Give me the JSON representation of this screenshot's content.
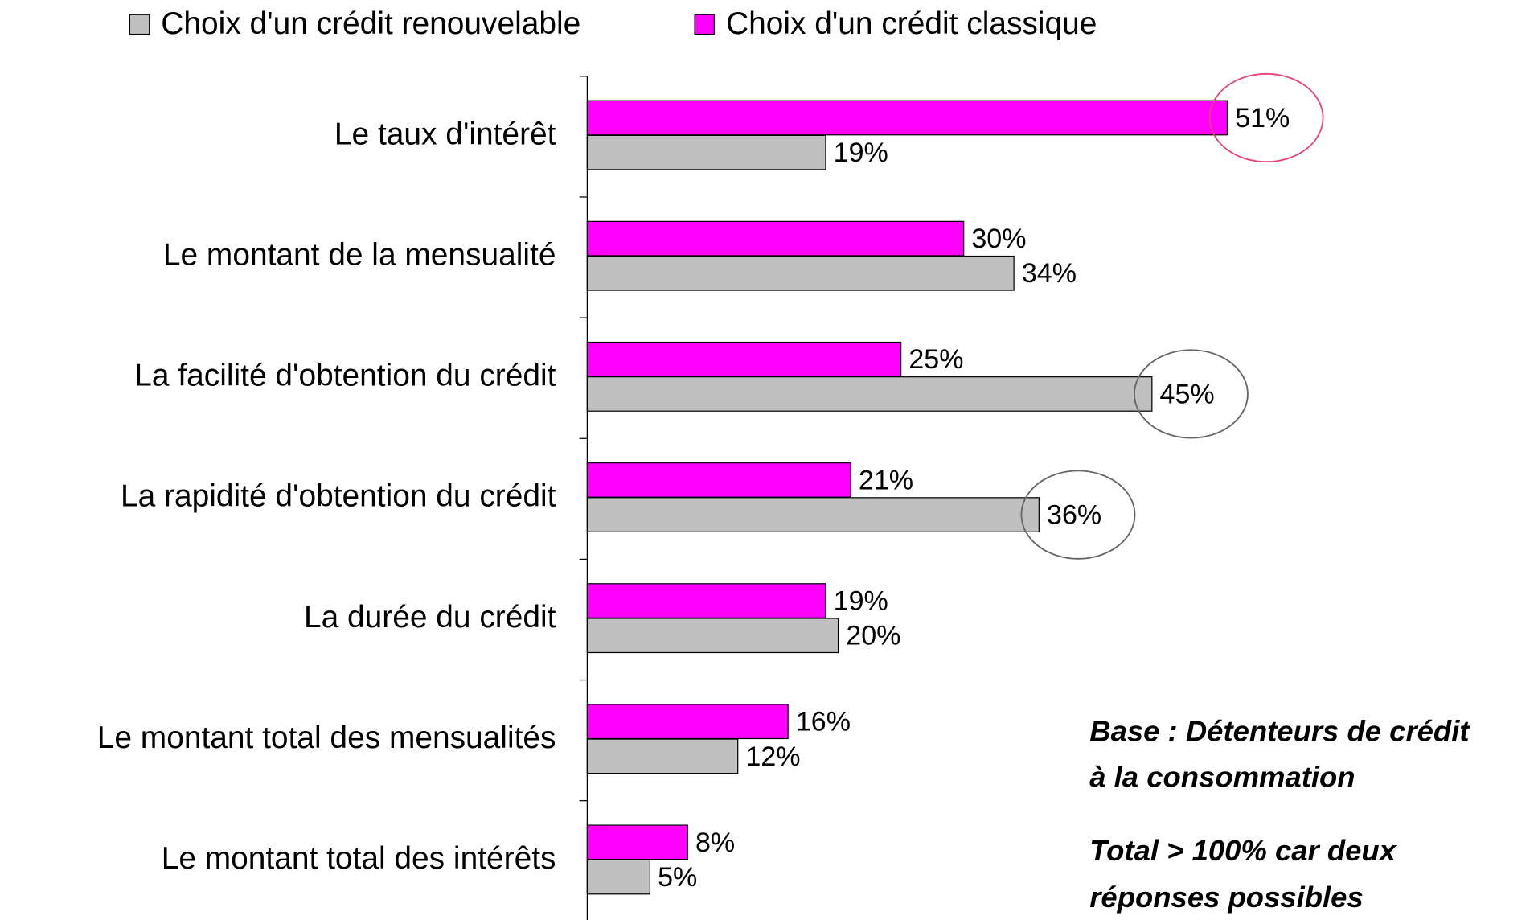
{
  "chart_data": {
    "type": "hbar",
    "categories": [
      "Le taux d'intérêt",
      "Le montant de la mensualité",
      "La facilité d'obtention du crédit",
      "La rapidité d'obtention du crédit",
      "La durée du crédit",
      "Le montant total des mensualités",
      "Le montant total des intérêts"
    ],
    "series": [
      {
        "name": "Choix d'un crédit renouvelable",
        "color": "#c0c0c0",
        "values": [
          19,
          34,
          45,
          36,
          20,
          12,
          5
        ],
        "value_labels": [
          "19%",
          "34%",
          "45%",
          "36%",
          "20%",
          "12%",
          "5%"
        ]
      },
      {
        "name": "Choix d'un crédit classique",
        "color": "#ff00ff",
        "values": [
          51,
          30,
          25,
          21,
          19,
          16,
          8
        ],
        "value_labels": [
          "51%",
          "30%",
          "25%",
          "21%",
          "19%",
          "16%",
          "8%"
        ]
      }
    ],
    "xlim": [
      0,
      75
    ],
    "highlights": [
      {
        "series": 1,
        "index": 0,
        "color": "#e8407f"
      },
      {
        "series": 0,
        "index": 2,
        "color": "#666666"
      },
      {
        "series": 0,
        "index": 3,
        "color": "#666666"
      }
    ],
    "notes": [
      {
        "lines": [
          "Base : Détenteurs de crédit",
          "à la consommation"
        ],
        "color": "#ff1493"
      },
      {
        "lines": [
          "Total > 100% car deux",
          "réponses possibles"
        ],
        "color": "#000000"
      }
    ]
  }
}
